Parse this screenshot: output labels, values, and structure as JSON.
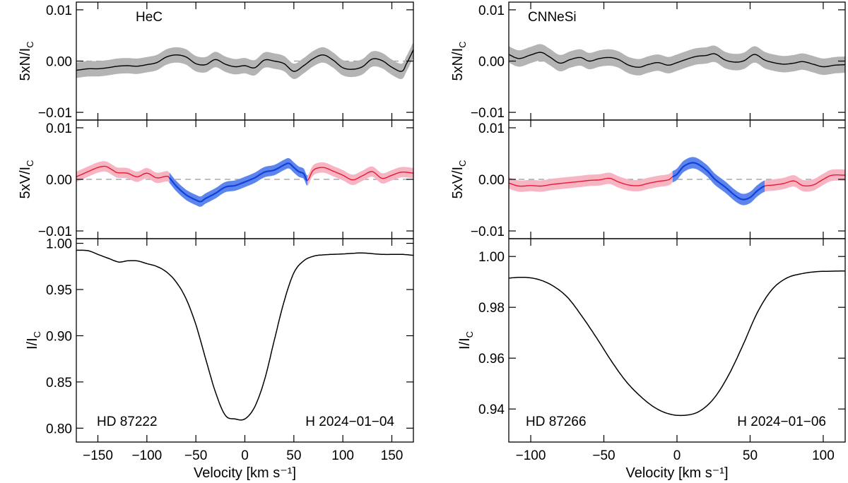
{
  "colors": {
    "null_line": "#000000",
    "null_band": "#b4b4b4",
    "stokes_line": "#e8182e",
    "stokes_band": "#f7b5c3",
    "detect_line": "#1540d8",
    "detect_band": "#5c86ee",
    "intensity_line": "#000000",
    "zero_line": "#999999"
  },
  "chart_data": [
    {
      "type": "line",
      "panel": "left",
      "title": "HeC",
      "star": "HD 87222",
      "date_label": "H 2024−01−04",
      "xlabel": "Velocity [km s⁻¹]",
      "xlim": [
        -172,
        172
      ],
      "xticks": [
        -150,
        -100,
        -50,
        0,
        50,
        100,
        150
      ],
      "xtick_labels": [
        "−150",
        "−100",
        "−50",
        "0",
        "50",
        "100",
        "150"
      ],
      "detection_window": [
        -77,
        64
      ],
      "null": {
        "ylabel": "5xN/I",
        "ylabel_sub": "C",
        "ylim": [
          -0.0115,
          0.0115
        ],
        "yticks": [
          0.01,
          0.0,
          -0.01
        ],
        "ytick_labels": [
          "0.01",
          "0.00",
          "−0.01"
        ],
        "x": [
          -172,
          -160,
          -150,
          -140,
          -130,
          -120,
          -110,
          -100,
          -90,
          -80,
          -70,
          -60,
          -50,
          -40,
          -30,
          -20,
          -10,
          0,
          10,
          20,
          30,
          40,
          50,
          60,
          70,
          80,
          90,
          100,
          110,
          120,
          130,
          140,
          150,
          160,
          165,
          172
        ],
        "y": [
          -0.0018,
          -0.0015,
          -0.0015,
          -0.0013,
          -0.001,
          -0.0009,
          -0.001,
          -0.0007,
          -0.0003,
          0.0008,
          0.0012,
          0.0008,
          -0.0005,
          -0.0007,
          0.0003,
          -0.0006,
          -0.0011,
          -0.0009,
          -0.0013,
          0.0002,
          0.0,
          -0.0005,
          -0.002,
          -0.0009,
          0.0005,
          0.0012,
          0.0002,
          -0.0013,
          -0.0016,
          -0.0011,
          0.0004,
          0.0001,
          -0.0012,
          -0.002,
          -0.0005,
          0.0022
        ],
        "err": 0.0015
      },
      "stokes": {
        "ylabel": "5xV/I",
        "ylabel_sub": "C",
        "ylim": [
          -0.0115,
          0.0115
        ],
        "yticks": [
          0.01,
          0.0,
          -0.01
        ],
        "ytick_labels": [
          "0.01",
          "0.00",
          "−0.01"
        ],
        "x": [
          -172,
          -160,
          -150,
          -142,
          -135,
          -130,
          -120,
          -110,
          -100,
          -90,
          -80,
          -77,
          -70,
          -60,
          -50,
          -45,
          -40,
          -30,
          -20,
          -10,
          0,
          10,
          20,
          30,
          40,
          45,
          50,
          55,
          60,
          64,
          70,
          80,
          90,
          100,
          110,
          120,
          130,
          140,
          150,
          160,
          172
        ],
        "y": [
          0.0005,
          0.0015,
          0.0023,
          0.0025,
          0.0018,
          0.0013,
          0.0012,
          0.0005,
          0.0012,
          0.0003,
          0.0006,
          0.0003,
          -0.0013,
          -0.003,
          -0.004,
          -0.0043,
          -0.0037,
          -0.0027,
          -0.0015,
          -0.0012,
          -0.0005,
          0.0003,
          0.0014,
          0.0018,
          0.0028,
          0.0031,
          0.0023,
          0.0015,
          0.0011,
          -0.0002,
          0.0018,
          0.0023,
          0.0016,
          0.0008,
          -0.0001,
          0.0007,
          0.0015,
          0.0002,
          0.0008,
          0.0014,
          0.0012
        ],
        "err": 0.001
      },
      "intensity": {
        "ylabel": "I/I",
        "ylabel_sub": "C",
        "ylim": [
          0.785,
          1.005
        ],
        "yticks": [
          1.0,
          0.95,
          0.9,
          0.85,
          0.8
        ],
        "ytick_labels": [
          "1.00",
          "0.95",
          "0.90",
          "0.85",
          "0.80"
        ],
        "x": [
          -172,
          -160,
          -150,
          -140,
          -130,
          -125,
          -120,
          -110,
          -100,
          -90,
          -80,
          -70,
          -60,
          -50,
          -40,
          -30,
          -20,
          -10,
          0,
          10,
          20,
          30,
          40,
          50,
          60,
          70,
          80,
          100,
          120,
          140,
          160,
          172
        ],
        "y": [
          0.9925,
          0.992,
          0.988,
          0.984,
          0.98,
          0.98,
          0.981,
          0.981,
          0.978,
          0.975,
          0.969,
          0.958,
          0.94,
          0.912,
          0.875,
          0.839,
          0.814,
          0.81,
          0.81,
          0.823,
          0.852,
          0.895,
          0.937,
          0.968,
          0.981,
          0.986,
          0.9875,
          0.9885,
          0.9895,
          0.988,
          0.988,
          0.987
        ]
      }
    },
    {
      "type": "line",
      "panel": "right",
      "title": "CNNeSi",
      "star": "HD 87266",
      "date_label": "H 2024−01−06",
      "xlabel": "Velocity [km s⁻¹]",
      "xlim": [
        -115,
        115
      ],
      "xticks": [
        -100,
        -50,
        0,
        50,
        100
      ],
      "xtick_labels": [
        "−100",
        "−50",
        "0",
        "50",
        "100"
      ],
      "detection_window": [
        -3,
        60
      ],
      "null": {
        "ylabel": "5xN/I",
        "ylabel_sub": "C",
        "ylim": [
          -0.0115,
          0.0115
        ],
        "yticks": [
          0.01,
          0.0,
          -0.01
        ],
        "ytick_labels": [
          "0.01",
          "0.00",
          "−0.01"
        ],
        "x": [
          -115,
          -108,
          -100,
          -93,
          -87,
          -80,
          -73,
          -66,
          -60,
          -53,
          -46,
          -40,
          -33,
          -26,
          -20,
          -13,
          -6,
          0,
          6,
          13,
          20,
          26,
          33,
          40,
          46,
          53,
          60,
          66,
          73,
          80,
          86,
          93,
          100,
          108,
          115
        ],
        "y": [
          0.0013,
          0.0005,
          0.0012,
          0.0017,
          0.0008,
          -0.0004,
          0.0003,
          0.0007,
          0.0,
          0.0005,
          0.0007,
          0.0003,
          -0.0008,
          -0.0012,
          -0.0007,
          -0.0003,
          -0.0008,
          -0.0003,
          0.0003,
          0.0009,
          0.0011,
          0.0014,
          0.0002,
          -0.0002,
          0.0001,
          0.0013,
          0.0002,
          -0.0003,
          -0.0006,
          -0.0004,
          -0.0001,
          -0.0006,
          -0.0011,
          -0.0008,
          -0.0007
        ],
        "err": 0.0016
      },
      "stokes": {
        "ylabel": "5xV/I",
        "ylabel_sub": "C",
        "ylim": [
          -0.0115,
          0.0115
        ],
        "yticks": [
          0.01,
          0.0,
          -0.01
        ],
        "ytick_labels": [
          "0.01",
          "0.00",
          "−0.01"
        ],
        "x": [
          -115,
          -108,
          -100,
          -93,
          -86,
          -80,
          -73,
          -66,
          -60,
          -53,
          -46,
          -40,
          -33,
          -26,
          -20,
          -13,
          -6,
          -3,
          0,
          5,
          12,
          20,
          26,
          33,
          40,
          45,
          50,
          55,
          60,
          66,
          73,
          80,
          86,
          93,
          100,
          106,
          115
        ],
        "y": [
          -0.0007,
          -0.0013,
          -0.0012,
          -0.0013,
          -0.001,
          -0.0008,
          -0.0006,
          -0.0004,
          -0.0002,
          -0.0001,
          0.0002,
          -0.0005,
          -0.0011,
          -0.0012,
          -0.0008,
          -0.0004,
          -0.0001,
          0.0005,
          0.001,
          0.0026,
          0.0032,
          0.0018,
          0.0,
          -0.0015,
          -0.0032,
          -0.0039,
          -0.0035,
          -0.0022,
          -0.0013,
          -0.0011,
          -0.0008,
          -0.0003,
          -0.0012,
          -0.0011,
          0.0,
          0.0008,
          0.0008
        ],
        "err": 0.0011
      },
      "intensity": {
        "ylabel": "I/I",
        "ylabel_sub": "C",
        "ylim": [
          0.927,
          1.007
        ],
        "yticks": [
          1.0,
          0.98,
          0.96,
          0.94
        ],
        "ytick_labels": [
          "1.00",
          "0.98",
          "0.96",
          "0.94"
        ],
        "x": [
          -115,
          -105,
          -95,
          -85,
          -75,
          -65,
          -55,
          -45,
          -35,
          -25,
          -15,
          -5,
          5,
          15,
          25,
          35,
          45,
          55,
          65,
          75,
          85,
          95,
          105,
          115
        ],
        "y": [
          0.9915,
          0.9918,
          0.991,
          0.9885,
          0.984,
          0.9765,
          0.968,
          0.959,
          0.951,
          0.945,
          0.9405,
          0.938,
          0.9375,
          0.939,
          0.944,
          0.953,
          0.965,
          0.978,
          0.987,
          0.9915,
          0.9932,
          0.994,
          0.9942,
          0.9943
        ]
      }
    }
  ]
}
